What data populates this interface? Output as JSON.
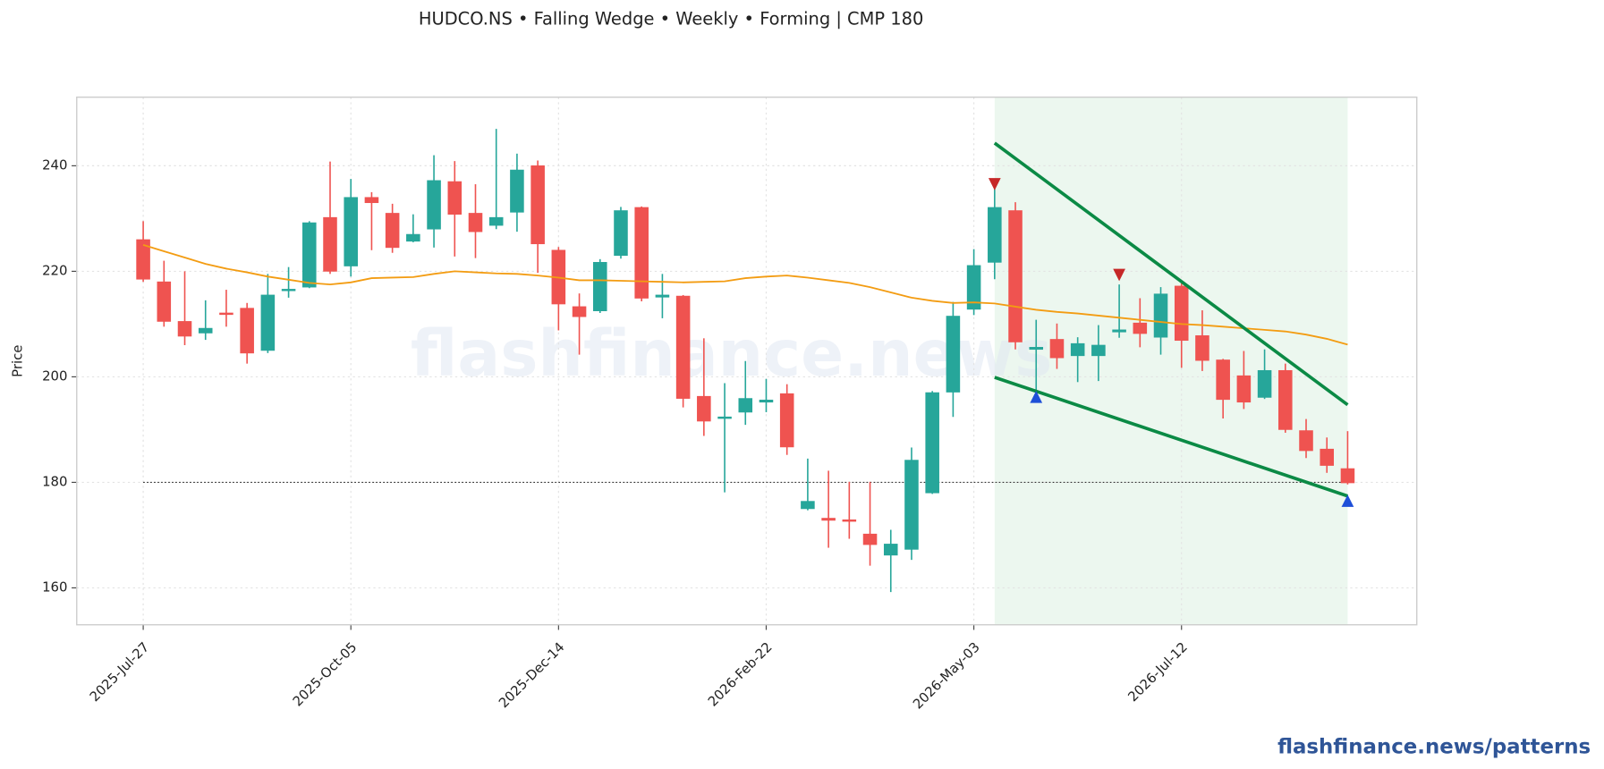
{
  "chart_data": {
    "type": "candlestick",
    "title": "HUDCO.NS  •  Falling Wedge  •  Weekly  •  Forming  |  CMP 180",
    "ylabel": "Price",
    "watermark": "flashfinance.news",
    "footer": "flashfinance.news/patterns",
    "x": [
      "2025-Jul-27",
      "2025-Aug-03",
      "2025-Aug-10",
      "2025-Aug-17",
      "2025-Aug-24",
      "2025-Aug-31",
      "2025-Sep-07",
      "2025-Sep-14",
      "2025-Sep-21",
      "2025-Sep-28",
      "2025-Oct-05",
      "2025-Oct-12",
      "2025-Oct-19",
      "2025-Oct-26",
      "2025-Nov-02",
      "2025-Nov-09",
      "2025-Nov-16",
      "2025-Nov-23",
      "2025-Nov-30",
      "2025-Dec-07",
      "2025-Dec-14",
      "2025-Dec-21",
      "2025-Dec-28",
      "2026-Jan-04",
      "2026-Jan-11",
      "2026-Jan-18",
      "2026-Jan-25",
      "2026-Feb-01",
      "2026-Feb-08",
      "2026-Feb-15",
      "2026-Feb-22",
      "2026-Mar-01",
      "2026-Mar-08",
      "2026-Mar-15",
      "2026-Mar-22",
      "2026-Mar-29",
      "2026-Apr-05",
      "2026-Apr-12",
      "2026-Apr-19",
      "2026-Apr-26",
      "2026-May-03",
      "2026-May-10",
      "2026-May-17",
      "2026-May-24",
      "2026-May-31",
      "2026-Jun-07",
      "2026-Jun-14",
      "2026-Jun-21",
      "2026-Jun-28",
      "2026-Jul-05",
      "2026-Jul-12",
      "2026-Jul-19",
      "2026-Jul-26",
      "2026-Aug-02",
      "2026-Aug-09",
      "2026-Aug-16",
      "2026-Aug-23",
      "2026-Aug-30",
      "2026-Sep-06"
    ],
    "open": [
      226,
      218,
      210.5,
      208.3,
      212.1,
      213,
      205,
      216.4,
      217,
      230.2,
      221,
      234,
      231,
      225.7,
      228,
      237,
      231,
      228.7,
      231.2,
      240,
      224,
      213.3,
      212.5,
      223,
      232.1,
      215.1,
      215.3,
      196.3,
      192.1,
      193.3,
      195.2,
      196.8,
      175,
      173.2,
      172.9,
      170.2,
      166.2,
      167.3,
      178,
      197.1,
      212.8,
      221.7,
      231.5,
      205.2,
      207.1,
      204,
      204,
      208.5,
      210.2,
      207.5,
      217.2,
      207.8,
      203.2,
      200.2,
      196.1,
      201.2,
      189.8,
      186.3,
      182.6
    ],
    "high": [
      229.5,
      222,
      220,
      214.5,
      216.5,
      214,
      219.5,
      220.8,
      229.5,
      240.8,
      237.5,
      235,
      232.8,
      230.8,
      242,
      240.9,
      236.5,
      247,
      242.3,
      241,
      224.6,
      215.8,
      222.3,
      232.2,
      232.3,
      219.5,
      215.5,
      207.3,
      198.8,
      203,
      199.6,
      198.6,
      184.5,
      182.2,
      180.1,
      180.1,
      171,
      186.6,
      197.3,
      214.2,
      224.2,
      236.1,
      233.1,
      210.8,
      210.1,
      207.5,
      209.8,
      217.5,
      214.9,
      217,
      217.7,
      212.6,
      203.4,
      204.9,
      205.2,
      202.5,
      192,
      188.5,
      189.7
    ],
    "low": [
      218,
      209.5,
      206,
      207,
      209.5,
      202.5,
      204.5,
      215,
      216.8,
      219.5,
      219,
      224,
      223.5,
      225.5,
      224.5,
      222.8,
      222.5,
      228,
      227.5,
      219.7,
      208.8,
      204.2,
      212.1,
      222.4,
      214.3,
      211.1,
      194.2,
      188.8,
      178.1,
      190.9,
      193.3,
      185.2,
      174.7,
      167.6,
      169.3,
      164.2,
      159.2,
      165.3,
      177.8,
      192.4,
      211.7,
      218.5,
      205.2,
      197.5,
      201.5,
      199,
      199.2,
      207.4,
      205.6,
      204.2,
      201.7,
      201.1,
      192.1,
      193.9,
      195.8,
      189.4,
      184.6,
      181.8,
      179.6
    ],
    "close": [
      218.5,
      210.5,
      207.7,
      209.2,
      211.8,
      204.5,
      215.5,
      216.6,
      229.2,
      220,
      234,
      233,
      224.5,
      227,
      237.2,
      230.8,
      227.5,
      230.2,
      239.2,
      225.2,
      213.8,
      211.4,
      221.7,
      231.5,
      214.9,
      215.5,
      195.9,
      191.6,
      192.4,
      195.9,
      195.6,
      186.7,
      176.4,
      172.8,
      172.6,
      168.2,
      168.3,
      184.2,
      197,
      211.5,
      221.1,
      232.1,
      206.6,
      205.6,
      203.6,
      206.3,
      206,
      208.9,
      208.2,
      215.7,
      206.9,
      203.1,
      195.7,
      195.2,
      201.2,
      190,
      186,
      183.2,
      179.9
    ],
    "up_color": "#26a69a",
    "down_color": "#ef5350",
    "moving_average": {
      "color": "#f39c12",
      "values": [
        225.0,
        223.8,
        222.6,
        221.4,
        220.5,
        219.8,
        219.0,
        218.4,
        217.8,
        217.5,
        217.9,
        218.7,
        218.8,
        218.9,
        219.5,
        220.0,
        219.8,
        219.6,
        219.5,
        219.2,
        218.8,
        218.3,
        218.3,
        218.2,
        218.1,
        218.0,
        217.9,
        218.0,
        218.1,
        218.7,
        219.0,
        219.2,
        218.8,
        218.3,
        217.8,
        217.0,
        216.0,
        215.0,
        214.4,
        214.0,
        214.1,
        213.9,
        213.3,
        212.7,
        212.3,
        212.0,
        211.6,
        211.2,
        210.8,
        210.4,
        210.0,
        209.8,
        209.5,
        209.2,
        208.9,
        208.6,
        208.0,
        207.2,
        206.1
      ]
    },
    "pattern": {
      "start": "2026-May-10",
      "end": "2026-Sep-06",
      "upper": [
        244.3,
        194.7
      ],
      "lower": [
        199.9,
        177.4
      ],
      "color": "#0b8a45",
      "shade": "#e6f4ea"
    },
    "markers": [
      {
        "x": "2026-May-10",
        "value": 236.5,
        "kind": "down",
        "color": "#c62828"
      },
      {
        "x": "2026-Jun-21",
        "value": 219.3,
        "kind": "down",
        "color": "#c62828"
      },
      {
        "x": "2026-May-24",
        "value": 196.2,
        "kind": "up",
        "color": "#1e4fd8"
      },
      {
        "x": "2026-Sep-06",
        "value": 176.5,
        "kind": "up",
        "color": "#1e4fd8"
      }
    ],
    "reference_line": 180,
    "ylim": [
      153,
      253
    ],
    "yticks": [
      160,
      180,
      200,
      220,
      240
    ],
    "xticks": [
      "2025-Jul-27",
      "2025-Oct-05",
      "2025-Dec-14",
      "2026-Feb-22",
      "2026-May-03",
      "2026-Jul-12"
    ],
    "grid": true
  }
}
